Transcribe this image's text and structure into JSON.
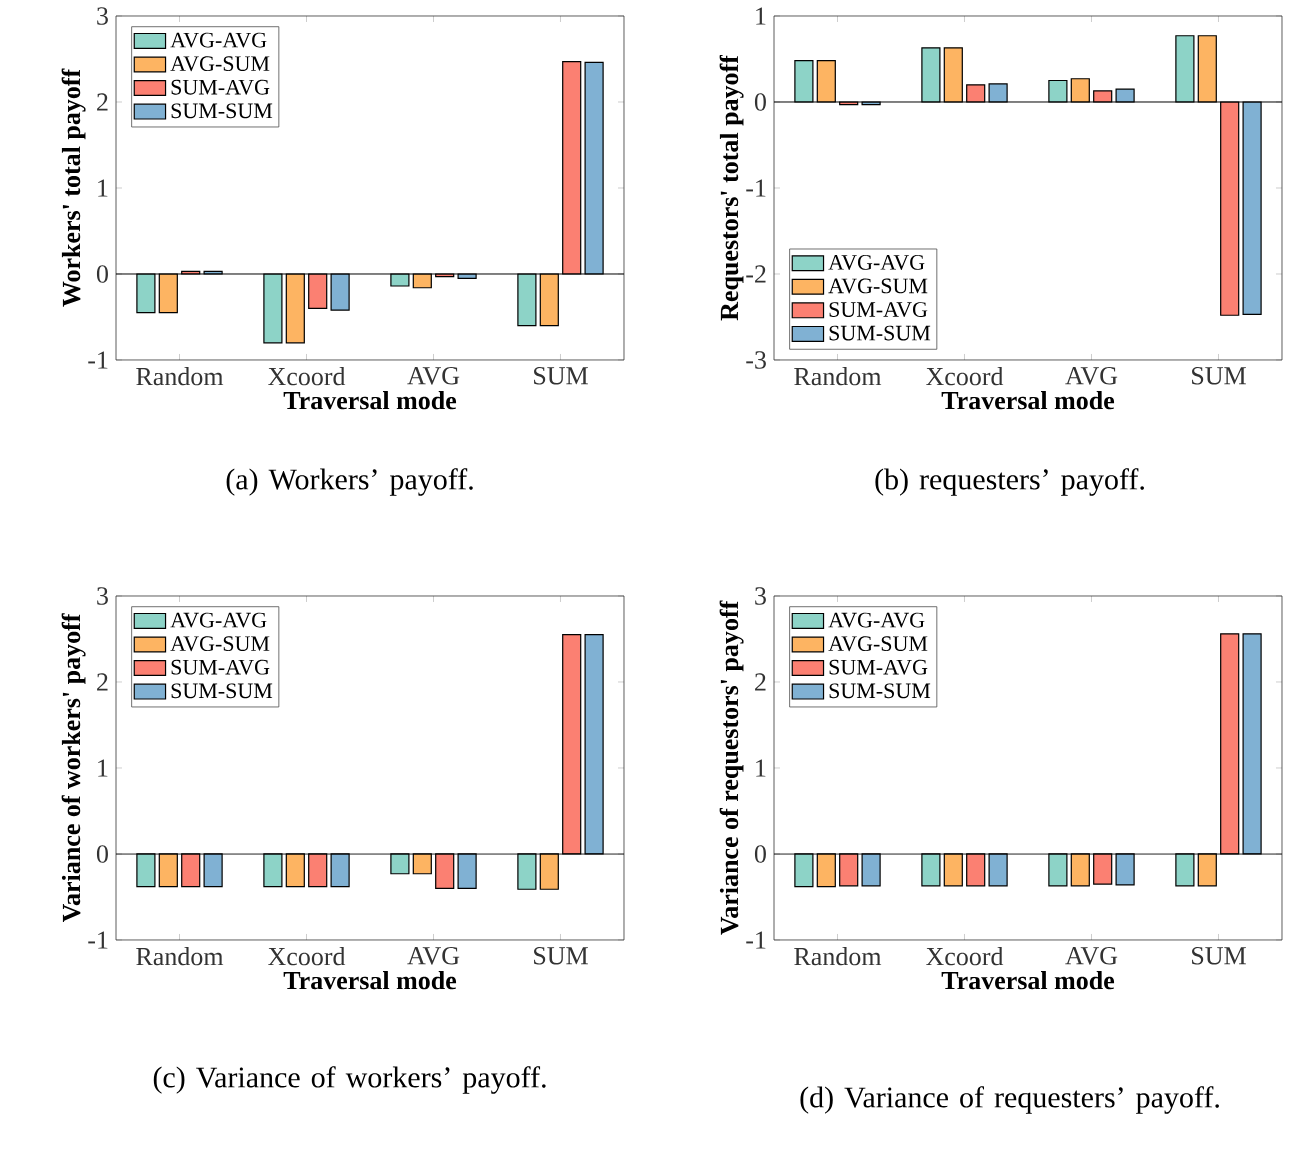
{
  "chart_data": [
    {
      "type": "bar",
      "xlabel": "Traversal mode",
      "ylabel": "Workers' total payoff",
      "categories": [
        "Random",
        "Xcoord",
        "AVG",
        "SUM"
      ],
      "ylim": [
        -1,
        3
      ],
      "yticks": [
        -1,
        0,
        1,
        2,
        3
      ],
      "legend": "top left",
      "annotations": [
        "(a) Workers’ payoff."
      ],
      "series": [
        {
          "name": "AVG-AVG",
          "color": "#8dd3c7",
          "values": [
            -0.45,
            -0.8,
            -0.14,
            -0.6
          ]
        },
        {
          "name": "AVG-SUM",
          "color": "#fdb462",
          "values": [
            -0.45,
            -0.8,
            -0.16,
            -0.6
          ]
        },
        {
          "name": "SUM-AVG",
          "color": "#fb8072",
          "values": [
            0.03,
            -0.4,
            -0.03,
            2.47
          ]
        },
        {
          "name": "SUM-SUM",
          "color": "#80b1d3",
          "values": [
            0.03,
            -0.42,
            -0.05,
            2.46
          ]
        }
      ]
    },
    {
      "type": "bar",
      "xlabel": "Traversal mode",
      "ylabel": "Requestors' total payoff",
      "categories": [
        "Random",
        "Xcoord",
        "AVG",
        "SUM"
      ],
      "ylim": [
        -3,
        1
      ],
      "yticks": [
        -3,
        -2,
        -1,
        0,
        1
      ],
      "legend": "bottom left",
      "annotations": [
        "(b) requesters’ payoff."
      ],
      "series": [
        {
          "name": "AVG-AVG",
          "color": "#8dd3c7",
          "values": [
            0.48,
            0.63,
            0.25,
            0.77
          ]
        },
        {
          "name": "AVG-SUM",
          "color": "#fdb462",
          "values": [
            0.48,
            0.63,
            0.27,
            0.77
          ]
        },
        {
          "name": "SUM-AVG",
          "color": "#fb8072",
          "values": [
            -0.03,
            0.2,
            0.13,
            -2.48
          ]
        },
        {
          "name": "SUM-SUM",
          "color": "#80b1d3",
          "values": [
            -0.03,
            0.21,
            0.15,
            -2.47
          ]
        }
      ]
    },
    {
      "type": "bar",
      "xlabel": "Traversal mode",
      "ylabel": "Variance of workers' payoff",
      "categories": [
        "Random",
        "Xcoord",
        "AVG",
        "SUM"
      ],
      "ylim": [
        -1,
        3
      ],
      "yticks": [
        -1,
        0,
        1,
        2,
        3
      ],
      "legend": "top left",
      "annotations": [
        "(c) Variance of workers’ payoff."
      ],
      "series": [
        {
          "name": "AVG-AVG",
          "color": "#8dd3c7",
          "values": [
            -0.38,
            -0.38,
            -0.23,
            -0.41
          ]
        },
        {
          "name": "AVG-SUM",
          "color": "#fdb462",
          "values": [
            -0.38,
            -0.38,
            -0.23,
            -0.41
          ]
        },
        {
          "name": "SUM-AVG",
          "color": "#fb8072",
          "values": [
            -0.38,
            -0.38,
            -0.4,
            2.55
          ]
        },
        {
          "name": "SUM-SUM",
          "color": "#80b1d3",
          "values": [
            -0.38,
            -0.38,
            -0.4,
            2.55
          ]
        }
      ]
    },
    {
      "type": "bar",
      "xlabel": "Traversal mode",
      "ylabel": "Variance of requestors' payoff",
      "categories": [
        "Random",
        "Xcoord",
        "AVG",
        "SUM"
      ],
      "ylim": [
        -1,
        3
      ],
      "yticks": [
        -1,
        0,
        1,
        2,
        3
      ],
      "legend": "top left",
      "annotations": [
        "(d) Variance of requesters’ payoff."
      ],
      "series": [
        {
          "name": "AVG-AVG",
          "color": "#8dd3c7",
          "values": [
            -0.38,
            -0.37,
            -0.37,
            -0.37
          ]
        },
        {
          "name": "AVG-SUM",
          "color": "#fdb462",
          "values": [
            -0.38,
            -0.37,
            -0.37,
            -0.37
          ]
        },
        {
          "name": "SUM-AVG",
          "color": "#fb8072",
          "values": [
            -0.37,
            -0.37,
            -0.35,
            2.56
          ]
        },
        {
          "name": "SUM-SUM",
          "color": "#80b1d3",
          "values": [
            -0.37,
            -0.37,
            -0.36,
            2.56
          ]
        }
      ]
    }
  ]
}
